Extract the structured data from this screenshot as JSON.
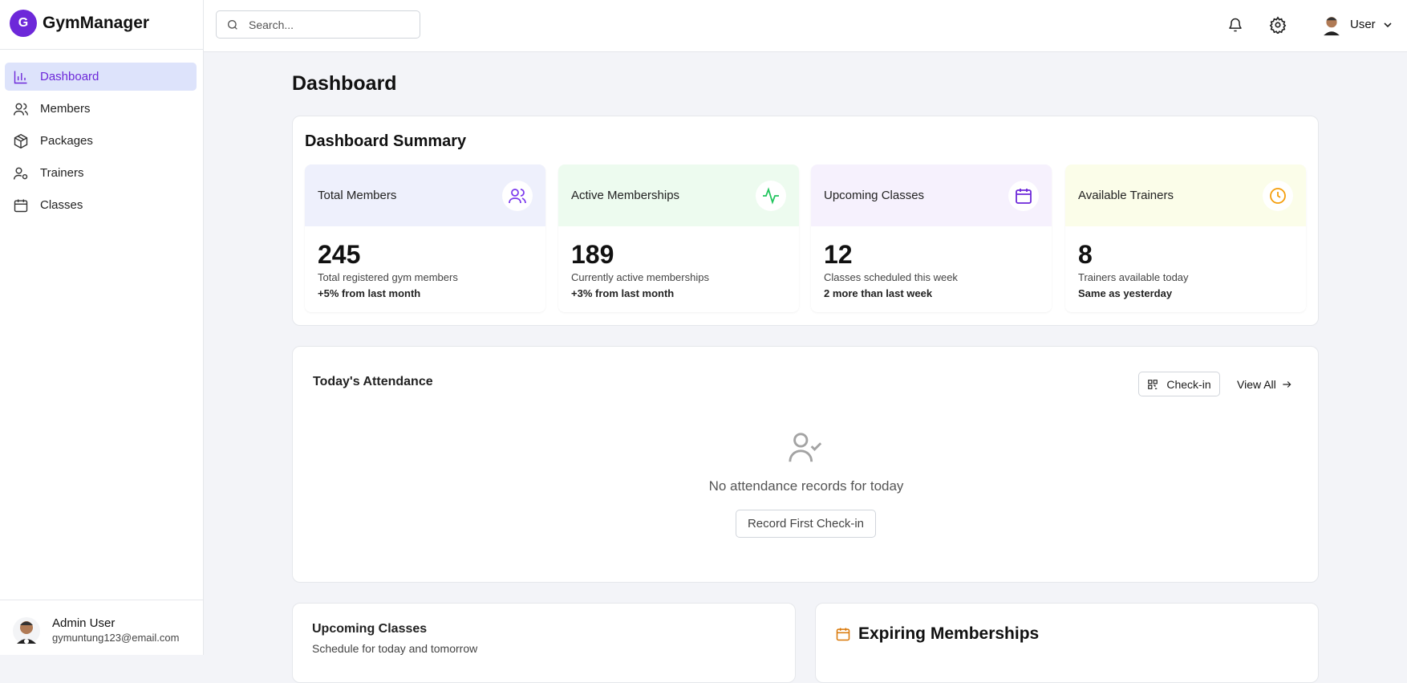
{
  "sidebar": {
    "brand": {
      "initial": "G",
      "name": "GymManager"
    },
    "nav": [
      "Dashboard",
      "Members",
      "Packages",
      "Trainers",
      "Classes"
    ],
    "user": {
      "name": "Admin User",
      "email": "gymuntung123@email.com"
    }
  },
  "header": {
    "search_placeholder": "Search...",
    "user": "User"
  },
  "page": {
    "title": "Dashboard"
  },
  "summary": {
    "title": "Dashboard Summary",
    "cards": [
      {
        "label": "Total Members",
        "value": "245",
        "description": "Total registered gym members",
        "change": "+5% from last month"
      },
      {
        "label": "Active Memberships",
        "value": "189",
        "description": "Currently active memberships",
        "change": "+3% from last month"
      },
      {
        "label": "Upcoming Classes",
        "value": "12",
        "description": "Classes scheduled this week",
        "change": "2 more than last week"
      },
      {
        "label": "Available Trainers",
        "value": "8",
        "description": "Trainers available today",
        "change": "Same as yesterday"
      }
    ]
  },
  "attendance": {
    "title": "Today's Attendance",
    "checkin": "Check-in",
    "view_all": "View All",
    "empty": "No attendance records for today",
    "record_first": "Record First Check-in"
  },
  "upcoming": {
    "title": "Upcoming Classes",
    "subtitle": "Schedule for today and tomorrow"
  },
  "expiring": {
    "title": "Expiring Memberships"
  }
}
